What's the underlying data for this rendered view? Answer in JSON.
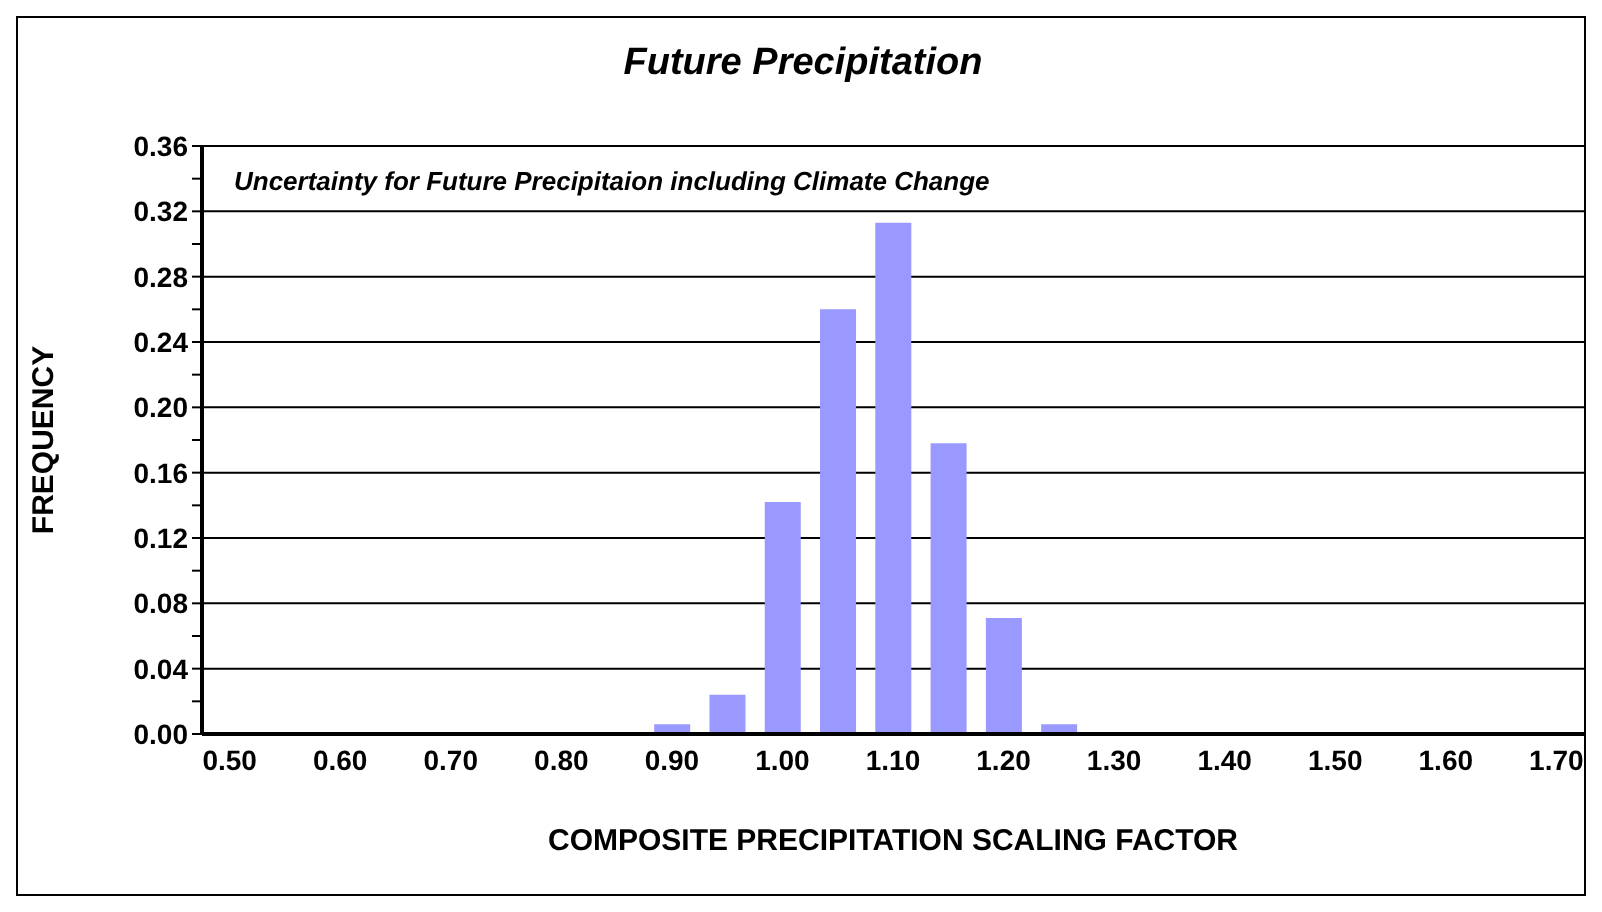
{
  "chart_data": {
    "type": "bar",
    "title": "Future Precipitation",
    "annotations": [
      "Uncertainty for Future Precipitaion including Climate Change"
    ],
    "xlabel": "COMPOSITE PRECIPITATION SCALING FACTOR",
    "ylabel": "FREQUENCY",
    "categories": [
      "0.50",
      null,
      "0.60",
      null,
      "0.70",
      null,
      "0.80",
      null,
      "0.90",
      null,
      "1.00",
      null,
      "1.10",
      null,
      "1.20",
      null,
      "1.30",
      null,
      "1.40",
      null,
      "1.50",
      null,
      "1.60",
      null,
      "1.70"
    ],
    "values": [
      0,
      0,
      0,
      0,
      0,
      0,
      0,
      0,
      0.006,
      0.024,
      0.142,
      0.26,
      0.313,
      0.178,
      0.071,
      0.006,
      0,
      0,
      0,
      0,
      0,
      0,
      0,
      0,
      0
    ],
    "color": "#9999ff",
    "ylim": [
      0,
      0.36
    ],
    "yticks": [
      {
        "value": 0,
        "label": "0.00"
      },
      {
        "value": 0.02,
        "label": null
      },
      {
        "value": 0.04,
        "label": "0.04"
      },
      {
        "value": 0.06,
        "label": null
      },
      {
        "value": 0.08,
        "label": "0.08"
      },
      {
        "value": 0.1,
        "label": null
      },
      {
        "value": 0.12,
        "label": "0.12"
      },
      {
        "value": 0.14,
        "label": null
      },
      {
        "value": 0.16,
        "label": "0.16"
      },
      {
        "value": 0.18,
        "label": null
      },
      {
        "value": 0.2,
        "label": "0.20"
      },
      {
        "value": 0.22,
        "label": null
      },
      {
        "value": 0.24,
        "label": "0.24"
      },
      {
        "value": 0.26,
        "label": null
      },
      {
        "value": 0.28,
        "label": "0.28"
      },
      {
        "value": 0.3,
        "label": null
      },
      {
        "value": 0.32,
        "label": "0.32"
      },
      {
        "value": 0.34,
        "label": null
      },
      {
        "value": 0.36,
        "label": "0.36"
      }
    ],
    "grid": "y",
    "legend": false
  }
}
